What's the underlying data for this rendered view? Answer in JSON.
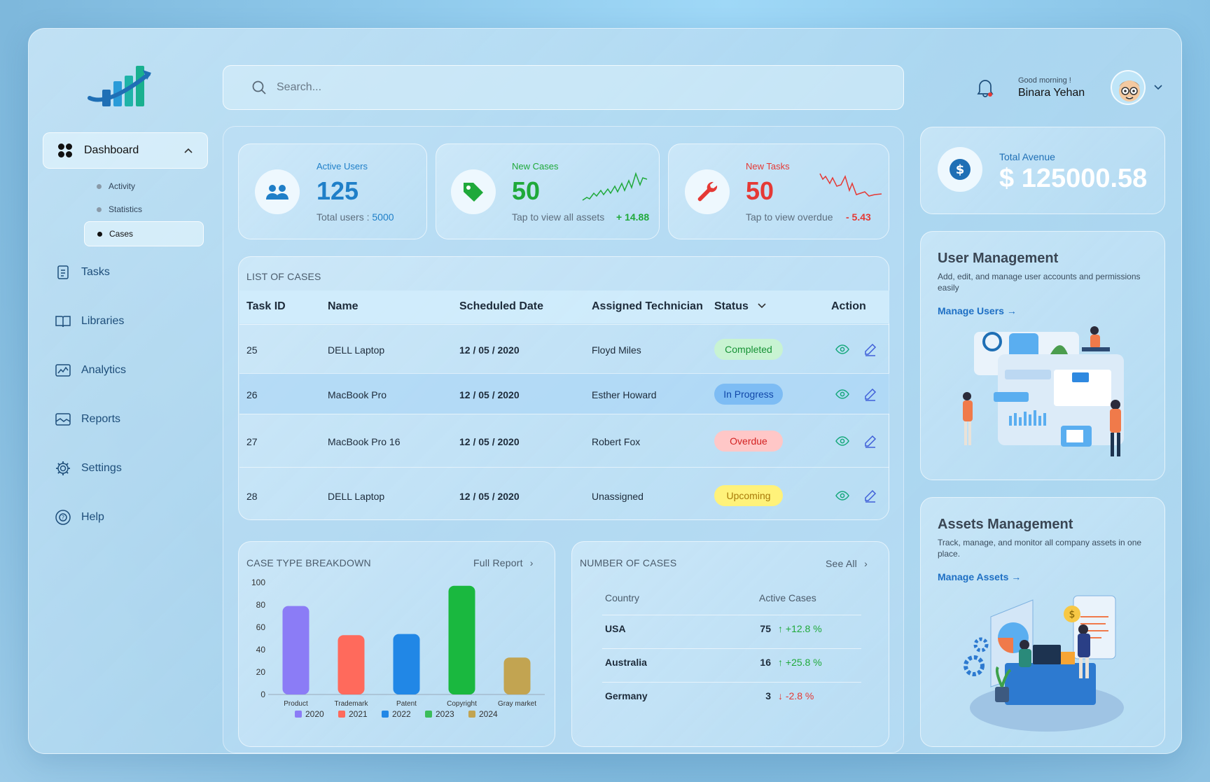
{
  "sidebar": {
    "dashboard_label": "Dashboard",
    "sub_items": [
      "Activity",
      "Statistics",
      "Cases"
    ],
    "nav": [
      {
        "label": "Tasks",
        "icon": "tasks-icon"
      },
      {
        "label": "Libraries",
        "icon": "book-icon"
      },
      {
        "label": "Analytics",
        "icon": "analytics-icon"
      },
      {
        "label": "Reports",
        "icon": "reports-icon"
      },
      {
        "label": "Settings",
        "icon": "gear-icon"
      },
      {
        "label": "Help",
        "icon": "help-icon"
      }
    ]
  },
  "header": {
    "search_placeholder": "Search...",
    "greeting": "Good morning !",
    "user_name": "Binara Yehan"
  },
  "stats": {
    "active_users": {
      "title": "Active Users",
      "value": "125",
      "sub": "Total users : ",
      "sub_value": "5000",
      "color": "#1f7fc8"
    },
    "new_cases": {
      "title": "New Cases",
      "value": "50",
      "sub": "Tap to view all assets",
      "delta": "+ 14.88",
      "color": "#1fa93a"
    },
    "new_tasks": {
      "title": "New Tasks",
      "value": "50",
      "sub": "Tap to view overdue",
      "delta": "- 5.43",
      "color": "#e53935"
    }
  },
  "total": {
    "title": "Total Avenue",
    "value": "$ 125000.58"
  },
  "cases_table": {
    "title": "LIST OF CASES",
    "columns": [
      "Task ID",
      "Name",
      "Scheduled Date",
      "Assigned Technician",
      "Status",
      "Action"
    ],
    "rows": [
      {
        "id": "25",
        "name": "DELL Laptop",
        "date": "12 / 05 / 2020",
        "tech": "Floyd Miles",
        "status": "Completed"
      },
      {
        "id": "26",
        "name": "MacBook Pro",
        "date": "12 / 05 / 2020",
        "tech": "Esther Howard",
        "status": "In Progress"
      },
      {
        "id": "27",
        "name": "MacBook Pro 16",
        "date": "12 / 05 / 2020",
        "tech": "Robert Fox",
        "status": "Overdue"
      },
      {
        "id": "28",
        "name": "DELL Laptop",
        "date": "12 / 05 / 2020",
        "tech": "Unassigned",
        "status": "Upcoming"
      }
    ]
  },
  "breakdown": {
    "title": "CASE TYPE BREAKDOWN",
    "link": "Full Report"
  },
  "chart_data": {
    "type": "bar",
    "title": "CASE TYPE BREAKDOWN",
    "categories": [
      "Product",
      "Trademark",
      "Patent",
      "Copyright",
      "Gray market"
    ],
    "values": [
      79,
      53,
      54,
      97,
      33
    ],
    "bar_colors": [
      "#8b7cf6",
      "#ff6a5c",
      "#2187e6",
      "#1ab83f",
      "#c2a451"
    ],
    "legend": [
      {
        "name": "2020",
        "color": "#8b7cf6"
      },
      {
        "name": "2021",
        "color": "#ff6a5c"
      },
      {
        "name": "2022",
        "color": "#2187e6"
      },
      {
        "name": "2023",
        "color": "#3bbd5a"
      },
      {
        "name": "2024",
        "color": "#c2a451"
      }
    ],
    "yticks": [
      "100",
      "80",
      "60",
      "40",
      "20",
      "0"
    ],
    "ylim": [
      0,
      100
    ]
  },
  "number_cases": {
    "title": "NUMBER OF CASES",
    "link": "See All",
    "col_country": "Country",
    "col_active": "Active Cases",
    "rows": [
      {
        "country": "USA",
        "count": "75",
        "change": "↑ +12.8 %",
        "dir": "up"
      },
      {
        "country": "Australia",
        "count": "16",
        "change": "↑ +25.8 %",
        "dir": "up"
      },
      {
        "country": "Germany",
        "count": "3",
        "change": "↓ -2.8 %",
        "dir": "down"
      }
    ]
  },
  "user_mgmt": {
    "title": "User Management",
    "desc": "Add, edit, and manage user accounts and permissions easily",
    "link": "Manage Users"
  },
  "assets_mgmt": {
    "title": "Assets Management",
    "desc": "Track, manage, and monitor all company assets in one place.",
    "link": "Manage Assets"
  }
}
